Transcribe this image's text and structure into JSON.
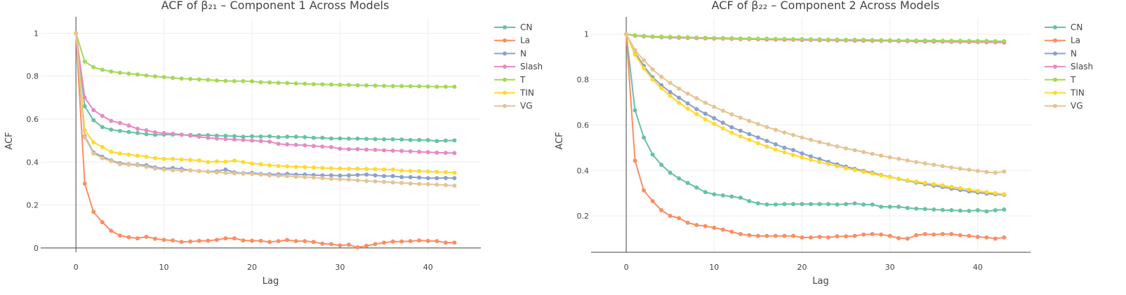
{
  "chart_data": [
    {
      "type": "line",
      "title": "ACF of β₂₁ – Component 1 Across Models",
      "xlabel": "Lag",
      "ylabel": "ACF",
      "xlim": [
        -4,
        46
      ],
      "ylim": [
        -0.02,
        1.07
      ],
      "xticks": [
        0,
        10,
        20,
        30,
        40
      ],
      "yticks": [
        0,
        0.2,
        0.4,
        0.6,
        0.8,
        1
      ],
      "ytick_labels": [
        "0",
        "0.2",
        "0.4",
        "0.6",
        "0.8",
        "1"
      ],
      "grid": true,
      "legend": "right",
      "series": [
        {
          "name": "CN",
          "color": "#66c2a5",
          "values": [
            1,
            0.66,
            0.595,
            0.563,
            0.551,
            0.545,
            0.54,
            0.535,
            0.53,
            0.527,
            0.528,
            0.528,
            0.527,
            0.526,
            0.525,
            0.525,
            0.523,
            0.522,
            0.521,
            0.518,
            0.52,
            0.519,
            0.52,
            0.516,
            0.518,
            0.518,
            0.516,
            0.513,
            0.513,
            0.51,
            0.51,
            0.509,
            0.509,
            0.508,
            0.507,
            0.506,
            0.506,
            0.505,
            0.503,
            0.503,
            0.502,
            0.498,
            0.5,
            0.501
          ]
        },
        {
          "name": "La",
          "color": "#fc8d62",
          "values": [
            1,
            0.3,
            0.168,
            0.12,
            0.08,
            0.058,
            0.05,
            0.045,
            0.052,
            0.043,
            0.038,
            0.035,
            0.028,
            0.03,
            0.033,
            0.034,
            0.038,
            0.045,
            0.045,
            0.035,
            0.034,
            0.033,
            0.028,
            0.032,
            0.037,
            0.032,
            0.032,
            0.028,
            0.02,
            0.018,
            0.012,
            0.015,
            0.003,
            0.01,
            0.018,
            0.025,
            0.03,
            0.03,
            0.032,
            0.035,
            0.033,
            0.032,
            0.025,
            0.025
          ]
        },
        {
          "name": "N",
          "color": "#8da0cb",
          "values": [
            1,
            0.52,
            0.445,
            0.425,
            0.408,
            0.395,
            0.39,
            0.388,
            0.385,
            0.375,
            0.37,
            0.372,
            0.368,
            0.362,
            0.358,
            0.356,
            0.357,
            0.365,
            0.352,
            0.348,
            0.35,
            0.345,
            0.343,
            0.343,
            0.345,
            0.342,
            0.342,
            0.34,
            0.338,
            0.338,
            0.337,
            0.338,
            0.34,
            0.342,
            0.338,
            0.335,
            0.335,
            0.33,
            0.33,
            0.328,
            0.325,
            0.325,
            0.326,
            0.325
          ]
        },
        {
          "name": "Slash",
          "color": "#e78ac3",
          "values": [
            1,
            0.7,
            0.642,
            0.615,
            0.592,
            0.582,
            0.57,
            0.555,
            0.548,
            0.538,
            0.535,
            0.532,
            0.528,
            0.523,
            0.518,
            0.513,
            0.51,
            0.507,
            0.505,
            0.503,
            0.5,
            0.498,
            0.495,
            0.485,
            0.482,
            0.48,
            0.478,
            0.475,
            0.472,
            0.47,
            0.462,
            0.46,
            0.46,
            0.458,
            0.457,
            0.455,
            0.453,
            0.452,
            0.45,
            0.448,
            0.446,
            0.444,
            0.443,
            0.442
          ]
        },
        {
          "name": "T",
          "color": "#a6d854",
          "values": [
            1,
            0.868,
            0.842,
            0.83,
            0.822,
            0.816,
            0.812,
            0.808,
            0.803,
            0.799,
            0.796,
            0.792,
            0.789,
            0.787,
            0.785,
            0.783,
            0.78,
            0.778,
            0.777,
            0.777,
            0.776,
            0.772,
            0.771,
            0.769,
            0.768,
            0.766,
            0.765,
            0.763,
            0.762,
            0.761,
            0.76,
            0.759,
            0.758,
            0.757,
            0.756,
            0.755,
            0.754,
            0.754,
            0.753,
            0.753,
            0.752,
            0.751,
            0.751,
            0.751
          ]
        },
        {
          "name": "TIN",
          "color": "#ffd92f",
          "values": [
            1,
            0.548,
            0.492,
            0.47,
            0.448,
            0.44,
            0.435,
            0.43,
            0.425,
            0.418,
            0.415,
            0.415,
            0.412,
            0.41,
            0.408,
            0.4,
            0.403,
            0.402,
            0.407,
            0.4,
            0.393,
            0.39,
            0.385,
            0.382,
            0.38,
            0.378,
            0.377,
            0.375,
            0.373,
            0.371,
            0.37,
            0.369,
            0.369,
            0.368,
            0.367,
            0.366,
            0.365,
            0.36,
            0.359,
            0.358,
            0.356,
            0.354,
            0.353,
            0.35
          ]
        },
        {
          "name": "VG",
          "color": "#e5c494",
          "values": [
            1,
            0.515,
            0.44,
            0.418,
            0.405,
            0.39,
            0.388,
            0.385,
            0.378,
            0.37,
            0.365,
            0.362,
            0.36,
            0.362,
            0.358,
            0.355,
            0.352,
            0.35,
            0.348,
            0.346,
            0.345,
            0.342,
            0.338,
            0.336,
            0.335,
            0.332,
            0.33,
            0.328,
            0.325,
            0.322,
            0.32,
            0.318,
            0.315,
            0.312,
            0.31,
            0.308,
            0.305,
            0.303,
            0.3,
            0.298,
            0.297,
            0.295,
            0.293,
            0.29
          ]
        }
      ]
    },
    {
      "type": "line",
      "title": "ACF of β₂₂ – Component 2 Across Models",
      "xlabel": "Lag",
      "ylabel": "ACF",
      "xlim": [
        -4,
        46
      ],
      "ylim": [
        0.04,
        1.07
      ],
      "xticks": [
        0,
        10,
        20,
        30,
        40
      ],
      "yticks": [
        0.2,
        0.4,
        0.6,
        0.8,
        1
      ],
      "ytick_labels": [
        "0.2",
        "0.4",
        "0.6",
        "0.8",
        "1"
      ],
      "grid": true,
      "legend": "right",
      "series": [
        {
          "name": "CN",
          "color": "#66c2a5",
          "values": [
            1,
            0.665,
            0.545,
            0.47,
            0.425,
            0.39,
            0.365,
            0.345,
            0.325,
            0.305,
            0.295,
            0.29,
            0.285,
            0.28,
            0.265,
            0.255,
            0.25,
            0.25,
            0.252,
            0.252,
            0.252,
            0.252,
            0.252,
            0.252,
            0.25,
            0.252,
            0.255,
            0.25,
            0.25,
            0.24,
            0.24,
            0.24,
            0.235,
            0.232,
            0.23,
            0.228,
            0.226,
            0.225,
            0.223,
            0.222,
            0.225,
            0.22,
            0.225,
            0.228
          ]
        },
        {
          "name": "La",
          "color": "#fc8d62",
          "values": [
            1,
            0.443,
            0.312,
            0.265,
            0.225,
            0.2,
            0.19,
            0.17,
            0.16,
            0.155,
            0.148,
            0.14,
            0.13,
            0.12,
            0.115,
            0.112,
            0.112,
            0.112,
            0.112,
            0.112,
            0.105,
            0.105,
            0.108,
            0.105,
            0.11,
            0.11,
            0.112,
            0.118,
            0.12,
            0.118,
            0.112,
            0.102,
            0.1,
            0.115,
            0.12,
            0.118,
            0.12,
            0.12,
            0.115,
            0.112,
            0.108,
            0.105,
            0.1,
            0.105
          ]
        },
        {
          "name": "N",
          "color": "#8da0cb",
          "values": [
            1,
            0.92,
            0.86,
            0.81,
            0.775,
            0.745,
            0.72,
            0.695,
            0.67,
            0.65,
            0.63,
            0.61,
            0.59,
            0.575,
            0.56,
            0.545,
            0.53,
            0.515,
            0.5,
            0.49,
            0.475,
            0.462,
            0.45,
            0.438,
            0.427,
            0.417,
            0.407,
            0.398,
            0.39,
            0.38,
            0.372,
            0.363,
            0.355,
            0.347,
            0.34,
            0.333,
            0.327,
            0.32,
            0.314,
            0.308,
            0.303,
            0.298,
            0.295,
            0.293
          ]
        },
        {
          "name": "Slash",
          "color": "#e78ac3",
          "values": [
            1,
            0.993,
            0.99,
            0.988,
            0.986,
            0.985,
            0.984,
            0.983,
            0.982,
            0.981,
            0.98,
            0.98,
            0.979,
            0.978,
            0.978,
            0.977,
            0.976,
            0.976,
            0.975,
            0.975,
            0.974,
            0.974,
            0.973,
            0.973,
            0.972,
            0.972,
            0.971,
            0.971,
            0.97,
            0.97,
            0.97,
            0.969,
            0.969,
            0.968,
            0.968,
            0.967,
            0.967,
            0.966,
            0.966,
            0.965,
            0.965,
            0.964,
            0.964,
            0.963
          ]
        },
        {
          "name": "T",
          "color": "#a6d854",
          "values": [
            1,
            0.995,
            0.992,
            0.99,
            0.989,
            0.988,
            0.987,
            0.986,
            0.985,
            0.984,
            0.983,
            0.983,
            0.982,
            0.981,
            0.981,
            0.98,
            0.98,
            0.979,
            0.979,
            0.978,
            0.978,
            0.977,
            0.977,
            0.976,
            0.976,
            0.975,
            0.975,
            0.975,
            0.974,
            0.974,
            0.973,
            0.973,
            0.973,
            0.972,
            0.972,
            0.972,
            0.971,
            0.971,
            0.971,
            0.97,
            0.97,
            0.97,
            0.969,
            0.969
          ]
        },
        {
          "name": "TIN",
          "color": "#ffd92f",
          "values": [
            1,
            0.91,
            0.85,
            0.8,
            0.762,
            0.728,
            0.698,
            0.672,
            0.648,
            0.625,
            0.605,
            0.585,
            0.566,
            0.55,
            0.535,
            0.52,
            0.505,
            0.492,
            0.48,
            0.468,
            0.457,
            0.447,
            0.437,
            0.428,
            0.418,
            0.41,
            0.402,
            0.394,
            0.386,
            0.378,
            0.371,
            0.364,
            0.357,
            0.351,
            0.345,
            0.339,
            0.334,
            0.328,
            0.322,
            0.316,
            0.31,
            0.305,
            0.3,
            0.296
          ]
        },
        {
          "name": "VG",
          "color": "#e5c494",
          "values": [
            1,
            0.93,
            0.885,
            0.845,
            0.812,
            0.785,
            0.76,
            0.738,
            0.718,
            0.698,
            0.68,
            0.663,
            0.647,
            0.632,
            0.618,
            0.604,
            0.591,
            0.579,
            0.567,
            0.556,
            0.545,
            0.535,
            0.525,
            0.515,
            0.506,
            0.497,
            0.489,
            0.481,
            0.473,
            0.465,
            0.458,
            0.451,
            0.444,
            0.437,
            0.431,
            0.425,
            0.419,
            0.413,
            0.408,
            0.403,
            0.398,
            0.393,
            0.39,
            0.395
          ]
        }
      ]
    }
  ]
}
